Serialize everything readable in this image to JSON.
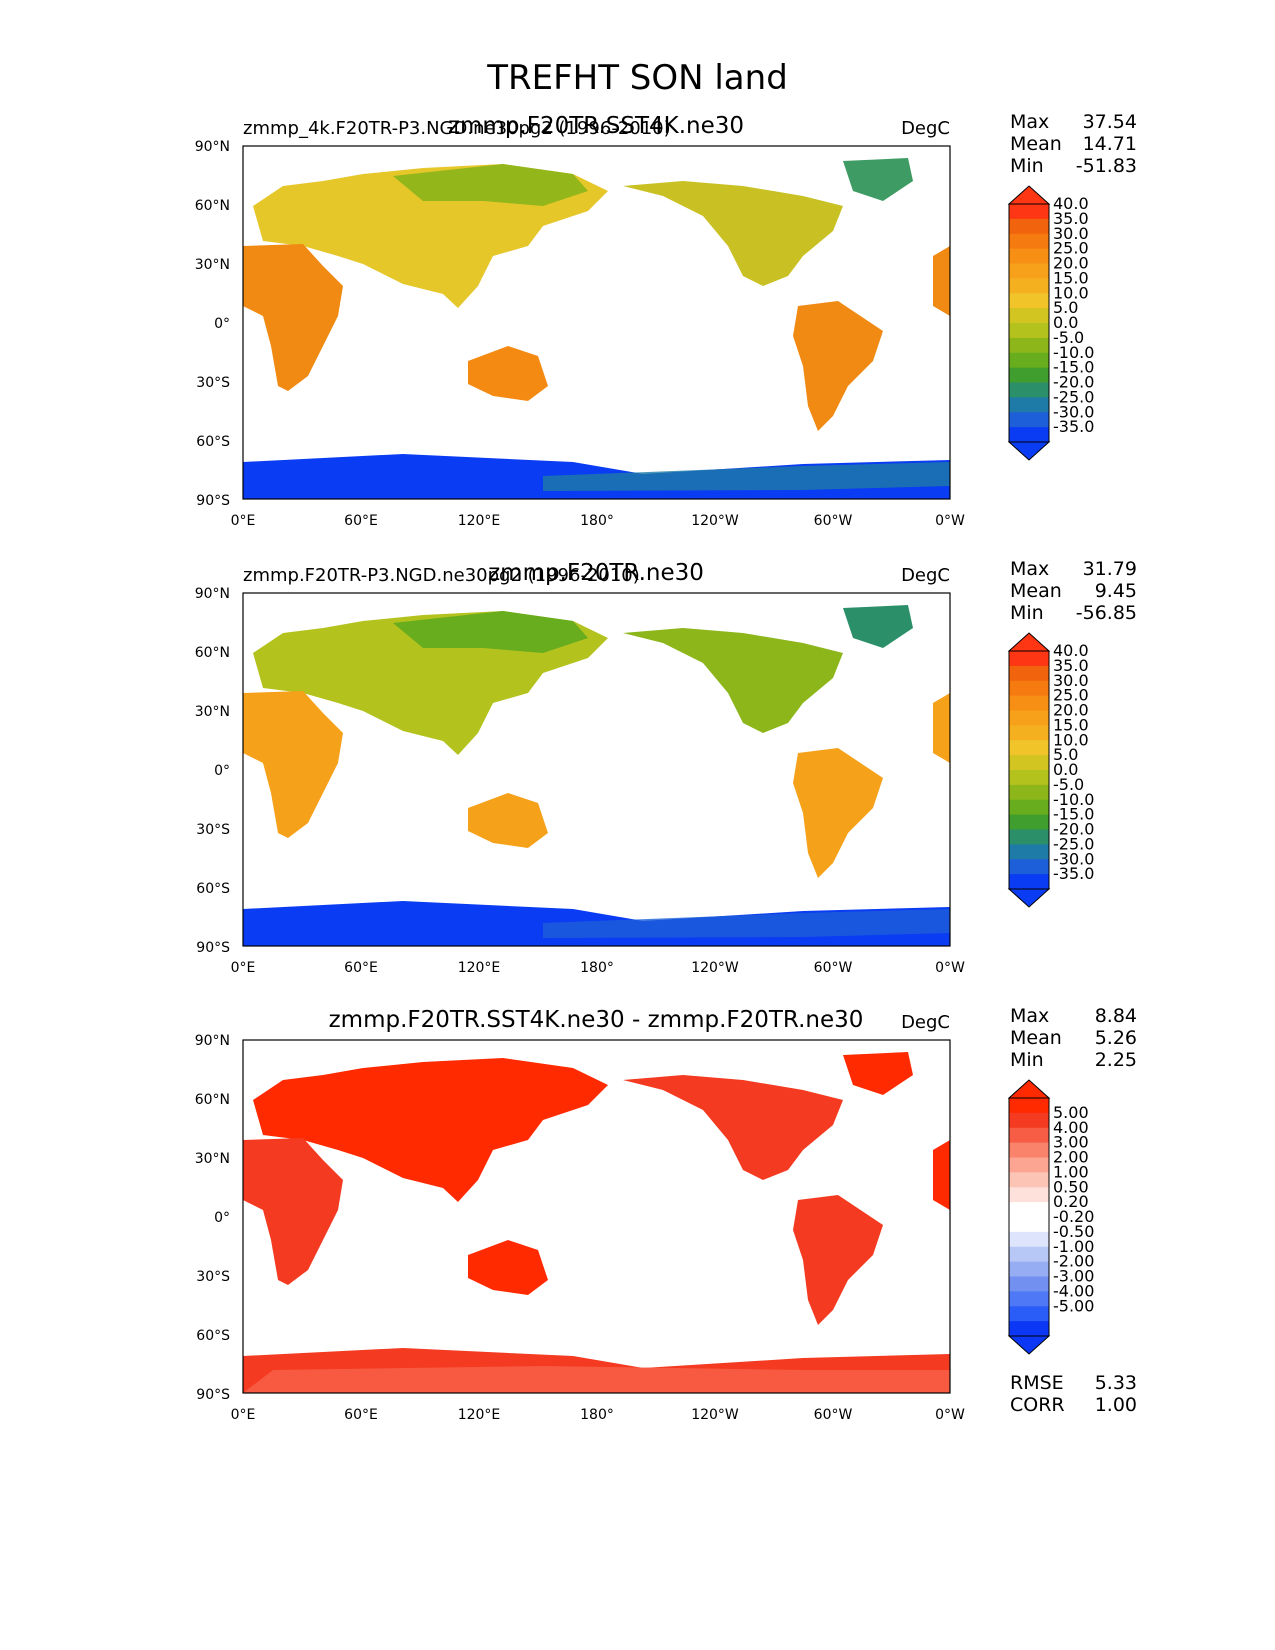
{
  "figure": {
    "title": "TREFHT SON land"
  },
  "colors": {
    "land_base": [
      "#f08a12",
      "#f5a11a",
      "#ff4719"
    ],
    "diff_bar": [
      "#0c38f5",
      "#2a5df8",
      "#4e78f5",
      "#7290f0",
      "#96acf3",
      "#b8c8f6",
      "#dde4fb",
      "#ffffff",
      "#ffffff",
      "#fde1da",
      "#fcc4b5",
      "#fca592",
      "#fa836c",
      "#f75d45",
      "#f43a20",
      "#ff2a00"
    ],
    "temp_bar": [
      "#0a3cf3",
      "#1d5fd8",
      "#1e7aa6",
      "#2b8f6a",
      "#3f9e2d",
      "#67ad1e",
      "#8cb61a",
      "#b4c21e",
      "#d2c421",
      "#f1c42a",
      "#f5b020",
      "#f7a01a",
      "#f88f15",
      "#f57a10",
      "#f2630e",
      "#ff3614"
    ]
  },
  "axes": {
    "lat_ticks": [
      "90°N",
      "60°N",
      "30°N",
      "0°",
      "30°S",
      "60°S",
      "90°S"
    ],
    "lon_ticks": [
      "0°E",
      "60°E",
      "120°E",
      "180°",
      "120°W",
      "60°W",
      "0°W"
    ]
  },
  "chart_data": [
    {
      "type": "heatmap",
      "left_title": "zmmp_4k.F20TR-P3.NGD.ne30pg2 (1996-2010)",
      "center_title": "zmmp.F20TR.SST4K.ne30",
      "units": "DegC",
      "stats": [
        {
          "label": "Max",
          "value": "37.54"
        },
        {
          "label": "Mean",
          "value": "14.71"
        },
        {
          "label": "Min",
          "value": "-51.83"
        }
      ],
      "colorbar_levels": [
        "40.0",
        "35.0",
        "30.0",
        "25.0",
        "20.0",
        "15.0",
        "10.0",
        "5.0",
        "0.0",
        "-5.0",
        "-10.0",
        "-15.0",
        "-20.0",
        "-25.0",
        "-30.0",
        "-35.0"
      ],
      "colorbar_range": [
        -35,
        40
      ]
    },
    {
      "type": "heatmap",
      "left_title": "zmmp.F20TR-P3.NGD.ne30pg2 (1996-2010)",
      "center_title": "zmmp.F20TR.ne30",
      "units": "DegC",
      "stats": [
        {
          "label": "Max",
          "value": "31.79"
        },
        {
          "label": "Mean",
          "value": "9.45"
        },
        {
          "label": "Min",
          "value": "-56.85"
        }
      ],
      "colorbar_levels": [
        "40.0",
        "35.0",
        "30.0",
        "25.0",
        "20.0",
        "15.0",
        "10.0",
        "5.0",
        "0.0",
        "-5.0",
        "-10.0",
        "-15.0",
        "-20.0",
        "-25.0",
        "-30.0",
        "-35.0"
      ],
      "colorbar_range": [
        -35,
        40
      ]
    },
    {
      "type": "heatmap",
      "left_title": "",
      "center_title": "zmmp.F20TR.SST4K.ne30 - zmmp.F20TR.ne30",
      "units": "DegC",
      "stats": [
        {
          "label": "Max",
          "value": "8.84"
        },
        {
          "label": "Mean",
          "value": "5.26"
        },
        {
          "label": "Min",
          "value": "2.25"
        }
      ],
      "colorbar_levels": [
        "5.00",
        "4.00",
        "3.00",
        "2.00",
        "1.00",
        "0.50",
        "0.20",
        "-0.20",
        "-0.50",
        "-1.00",
        "-2.00",
        "-3.00",
        "-4.00",
        "-5.00"
      ],
      "colorbar_range": [
        -5,
        5
      ],
      "metrics": [
        {
          "label": "RMSE",
          "value": "5.33"
        },
        {
          "label": "CORR",
          "value": "1.00"
        }
      ]
    }
  ]
}
